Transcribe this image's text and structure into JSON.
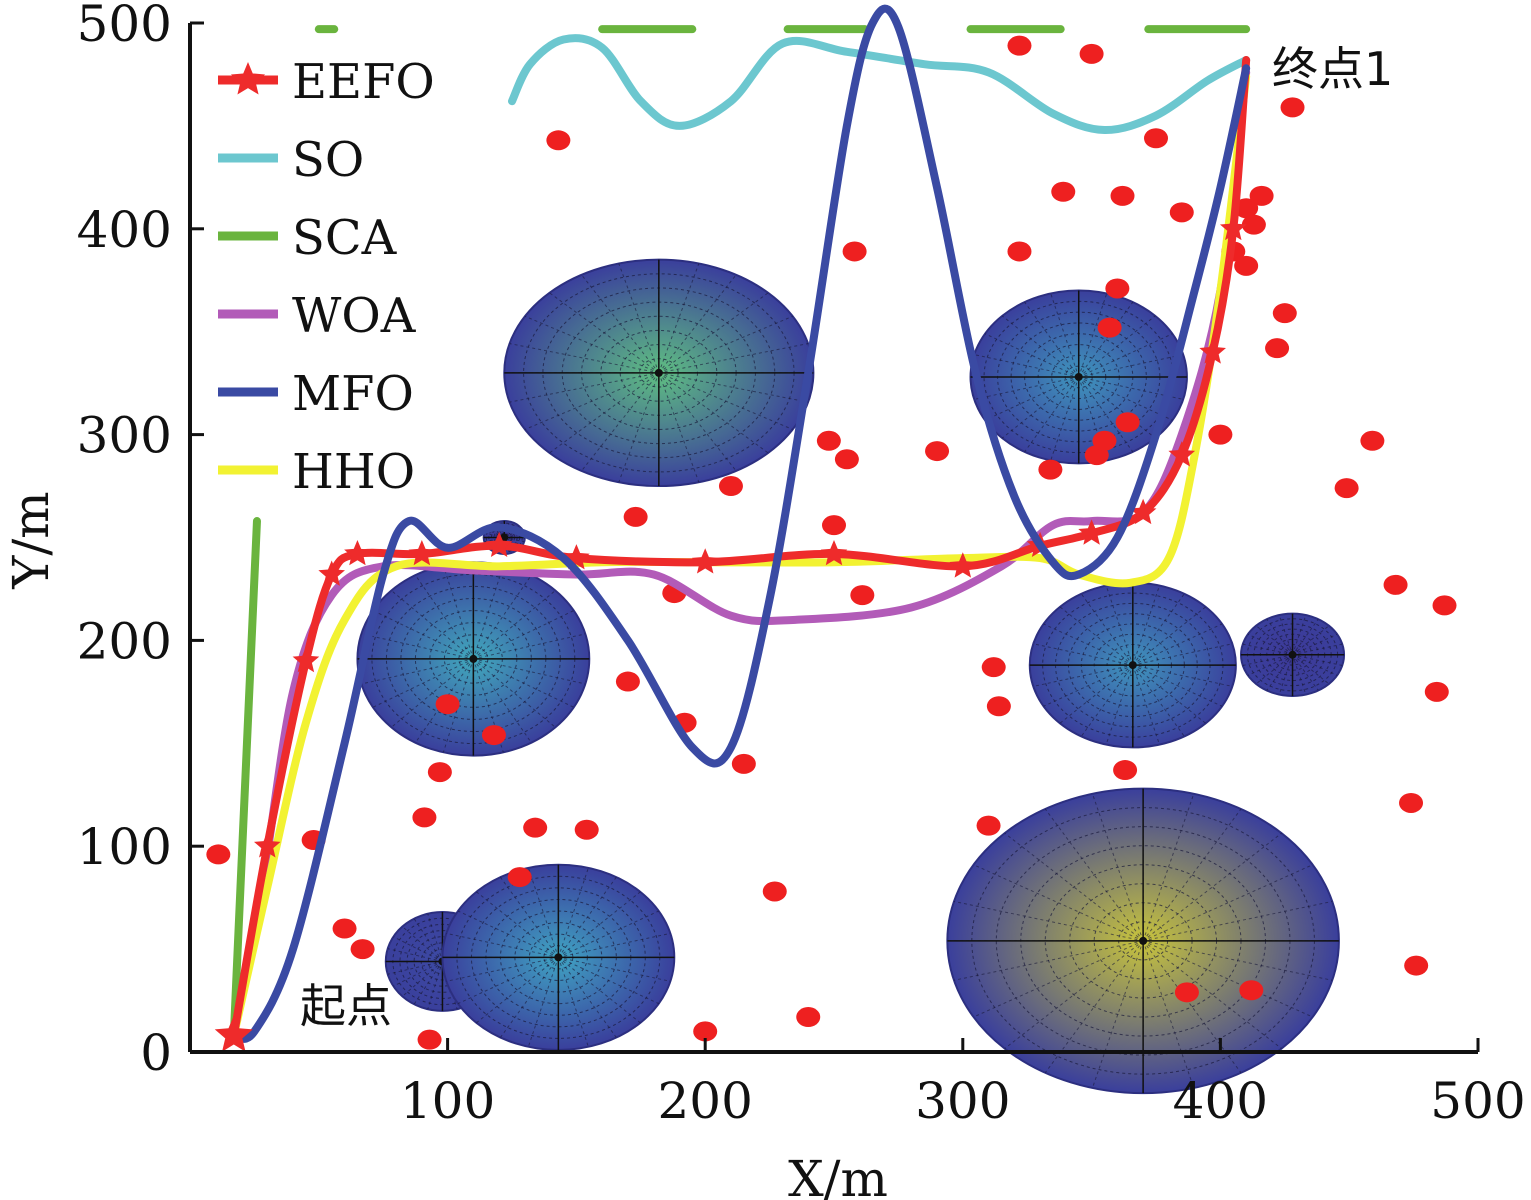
{
  "chart_data": {
    "type": "line",
    "xlabel": "X/m",
    "ylabel": "Y/m",
    "xlim": [
      0,
      500
    ],
    "ylim": [
      0,
      500
    ],
    "xticks": [
      100,
      200,
      300,
      400,
      500
    ],
    "yticks": [
      0,
      100,
      200,
      300,
      400,
      500
    ],
    "legend_position": "top-left",
    "annotations": [
      {
        "text": "起点",
        "x": 40,
        "y": 8
      },
      {
        "text": "终点1",
        "x": 420,
        "y": 485
      }
    ],
    "start_point": {
      "x": 17,
      "y": 8
    },
    "end_point": {
      "x": 410,
      "y": 482
    },
    "series": [
      {
        "name": "EEFO",
        "color": "#ee2b2b",
        "marker": "star",
        "line_width": 8,
        "points": [
          [
            17,
            8
          ],
          [
            30,
            100
          ],
          [
            45,
            190
          ],
          [
            55,
            232
          ],
          [
            65,
            242
          ],
          [
            90,
            242
          ],
          [
            120,
            246
          ],
          [
            150,
            240
          ],
          [
            200,
            238
          ],
          [
            250,
            242
          ],
          [
            300,
            236
          ],
          [
            330,
            246
          ],
          [
            350,
            252
          ],
          [
            370,
            262
          ],
          [
            385,
            290
          ],
          [
            397,
            340
          ],
          [
            405,
            400
          ],
          [
            410,
            482
          ]
        ]
      },
      {
        "name": "SO",
        "color": "#6cc7cf",
        "marker": "none",
        "line_width": 8,
        "points": [
          [
            125,
            462
          ],
          [
            132,
            480
          ],
          [
            145,
            492
          ],
          [
            160,
            488
          ],
          [
            175,
            462
          ],
          [
            190,
            450
          ],
          [
            210,
            462
          ],
          [
            230,
            490
          ],
          [
            255,
            486
          ],
          [
            285,
            480
          ],
          [
            310,
            476
          ],
          [
            335,
            456
          ],
          [
            355,
            448
          ],
          [
            375,
            455
          ],
          [
            395,
            472
          ],
          [
            410,
            482
          ]
        ]
      },
      {
        "name": "SCA",
        "color": "#6ab43e",
        "marker": "none",
        "line_width": 8,
        "points": [
          [
            17,
            8
          ],
          [
            26,
            258
          ]
        ]
      },
      {
        "name": "WOA",
        "color": "#b25bb8",
        "marker": "none",
        "line_width": 8,
        "points": [
          [
            17,
            8
          ],
          [
            28,
            80
          ],
          [
            40,
            175
          ],
          [
            55,
            222
          ],
          [
            75,
            236
          ],
          [
            110,
            234
          ],
          [
            150,
            232
          ],
          [
            180,
            232
          ],
          [
            210,
            212
          ],
          [
            235,
            210
          ],
          [
            280,
            216
          ],
          [
            315,
            236
          ],
          [
            335,
            256
          ],
          [
            350,
            258
          ],
          [
            370,
            262
          ],
          [
            385,
            300
          ],
          [
            400,
            370
          ],
          [
            410,
            476
          ]
        ]
      },
      {
        "name": "MFO",
        "color": "#3a4aa3",
        "marker": "none",
        "line_width": 8,
        "points": [
          [
            17,
            8
          ],
          [
            25,
            10
          ],
          [
            40,
            50
          ],
          [
            60,
            150
          ],
          [
            75,
            232
          ],
          [
            85,
            258
          ],
          [
            100,
            245
          ],
          [
            120,
            255
          ],
          [
            145,
            240
          ],
          [
            170,
            200
          ],
          [
            195,
            148
          ],
          [
            210,
            148
          ],
          [
            225,
            220
          ],
          [
            240,
            330
          ],
          [
            255,
            450
          ],
          [
            265,
            500
          ],
          [
            275,
            498
          ],
          [
            290,
            420
          ],
          [
            305,
            330
          ],
          [
            320,
            270
          ],
          [
            335,
            238
          ],
          [
            345,
            232
          ],
          [
            360,
            250
          ],
          [
            375,
            300
          ],
          [
            390,
            370
          ],
          [
            400,
            420
          ],
          [
            410,
            478
          ]
        ]
      },
      {
        "name": "HHO",
        "color": "#f2f232",
        "marker": "none",
        "line_width": 8,
        "points": [
          [
            17,
            8
          ],
          [
            30,
            80
          ],
          [
            45,
            160
          ],
          [
            60,
            210
          ],
          [
            80,
            236
          ],
          [
            120,
            236
          ],
          [
            160,
            238
          ],
          [
            200,
            238
          ],
          [
            250,
            238
          ],
          [
            300,
            240
          ],
          [
            330,
            240
          ],
          [
            345,
            232
          ],
          [
            365,
            228
          ],
          [
            380,
            240
          ],
          [
            390,
            290
          ],
          [
            400,
            370
          ],
          [
            410,
            474
          ]
        ]
      }
    ],
    "threats": [
      {
        "x": 182,
        "y": 330,
        "rx": 60,
        "ry": 55,
        "center_color": "#5fbf82"
      },
      {
        "x": 345,
        "y": 328,
        "rx": 42,
        "ry": 42,
        "center_color": "#3f95bd"
      },
      {
        "x": 110,
        "y": 191,
        "rx": 45,
        "ry": 47,
        "center_color": "#41a9bd"
      },
      {
        "x": 366,
        "y": 188,
        "rx": 40,
        "ry": 40,
        "center_color": "#3f95bd"
      },
      {
        "x": 428,
        "y": 193,
        "rx": 20,
        "ry": 20,
        "center_color": "#3d3a99"
      },
      {
        "x": 122,
        "y": 250,
        "rx": 8,
        "ry": 8,
        "center_color": "#3d3a99"
      },
      {
        "x": 98,
        "y": 44,
        "rx": 22,
        "ry": 24,
        "center_color": "#3d4aa3"
      },
      {
        "x": 143,
        "y": 46,
        "rx": 45,
        "ry": 45,
        "center_color": "#40a4c3"
      },
      {
        "x": 370,
        "y": 54,
        "rx": 76,
        "ry": 74,
        "center_color": "#c8c43c"
      }
    ],
    "obstacles": [
      [
        11,
        96
      ],
      [
        48,
        103
      ],
      [
        60,
        60
      ],
      [
        67,
        50
      ],
      [
        93,
        6
      ],
      [
        91,
        114
      ],
      [
        97,
        136
      ],
      [
        100,
        169
      ],
      [
        118,
        154
      ],
      [
        128,
        85
      ],
      [
        134,
        109
      ],
      [
        154,
        108
      ],
      [
        143,
        443
      ],
      [
        170,
        180
      ],
      [
        173,
        260
      ],
      [
        188,
        223
      ],
      [
        192,
        160
      ],
      [
        200,
        10
      ],
      [
        210,
        275
      ],
      [
        215,
        140
      ],
      [
        227,
        78
      ],
      [
        240,
        17
      ],
      [
        248,
        297
      ],
      [
        250,
        256
      ],
      [
        255,
        288
      ],
      [
        258,
        389
      ],
      [
        261,
        222
      ],
      [
        290,
        292
      ],
      [
        310,
        110
      ],
      [
        312,
        187
      ],
      [
        314,
        168
      ],
      [
        322,
        389
      ],
      [
        322,
        489
      ],
      [
        334,
        283
      ],
      [
        339,
        418
      ],
      [
        350,
        485
      ],
      [
        352,
        290
      ],
      [
        355,
        297
      ],
      [
        357,
        352
      ],
      [
        360,
        371
      ],
      [
        364,
        306
      ],
      [
        363,
        137
      ],
      [
        362,
        416
      ],
      [
        387,
        29
      ],
      [
        375,
        444
      ],
      [
        385,
        408
      ],
      [
        400,
        300
      ],
      [
        405,
        389
      ],
      [
        410,
        382
      ],
      [
        410,
        410
      ],
      [
        412,
        30
      ],
      [
        413,
        402
      ],
      [
        416,
        416
      ],
      [
        422,
        342
      ],
      [
        425,
        359
      ],
      [
        428,
        459
      ],
      [
        449,
        274
      ],
      [
        459,
        297
      ],
      [
        468,
        227
      ],
      [
        474,
        121
      ],
      [
        476,
        42
      ],
      [
        484,
        175
      ],
      [
        487,
        217
      ]
    ],
    "sca_dashes": [
      [
        50,
        56
      ],
      [
        160,
        195
      ],
      [
        232,
        262
      ],
      [
        303,
        338
      ],
      [
        372,
        410
      ]
    ]
  }
}
